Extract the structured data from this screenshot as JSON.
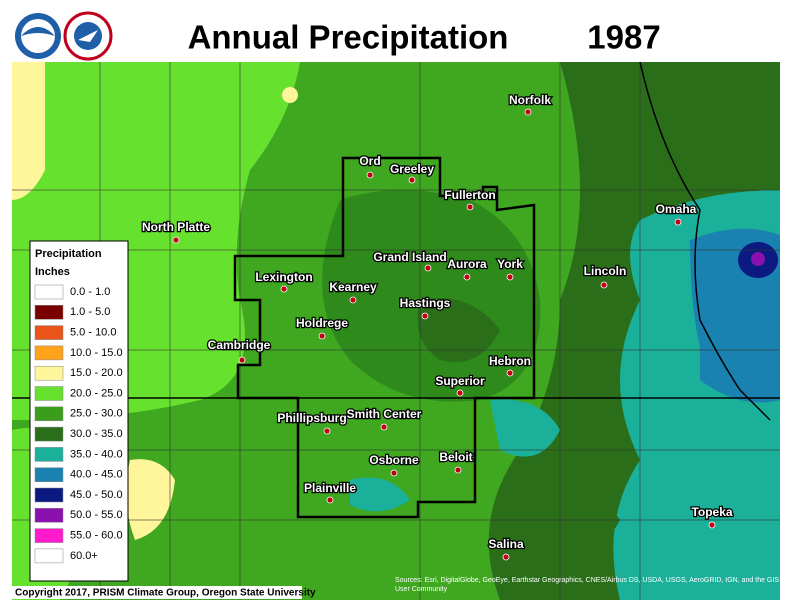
{
  "header": {
    "title": "Annual Precipitation",
    "year": "1987"
  },
  "legend": {
    "title": "Precipitation",
    "units": "Inches",
    "items": [
      {
        "label": "0.0 - 1.0",
        "color": "#ffffff"
      },
      {
        "label": "1.0 - 5.0",
        "color": "#7a0000"
      },
      {
        "label": "5.0 - 10.0",
        "color": "#e8541a"
      },
      {
        "label": "10.0 - 15.0",
        "color": "#ffa31a"
      },
      {
        "label": "15.0 - 20.0",
        "color": "#fff59a"
      },
      {
        "label": "20.0 - 25.0",
        "color": "#66e22e"
      },
      {
        "label": "25.0 - 30.0",
        "color": "#3a9e1c"
      },
      {
        "label": "30.0 - 35.0",
        "color": "#2a6e1a"
      },
      {
        "label": "35.0 - 40.0",
        "color": "#1ab09a"
      },
      {
        "label": "40.0 - 45.0",
        "color": "#1a82b0"
      },
      {
        "label": "45.0 - 50.0",
        "color": "#0a1a80"
      },
      {
        "label": "50.0 - 55.0",
        "color": "#8a10b0"
      },
      {
        "label": "55.0 - 60.0",
        "color": "#ff1acc"
      },
      {
        "label": "60.0+",
        "color": "#ffffff"
      }
    ]
  },
  "cities": [
    "Norfolk",
    "Ord",
    "Greeley",
    "Fullerton",
    "North Platte",
    "Omaha",
    "Grand Island",
    "Aurora",
    "York",
    "Lincoln",
    "Lexington",
    "Kearney",
    "Hastings",
    "Holdrege",
    "Cambridge",
    "Hebron",
    "Superior",
    "Phillipsburg",
    "Smith Center",
    "Beloit",
    "Osborne",
    "Plainville",
    "Topeka",
    "Salina"
  ],
  "footer": {
    "copyright": "Copyright 2017, PRISM Climate Group, Oregon State University",
    "sources": "Sources: Esri, DigitalGlobe, GeoEye, Earthstar Geographics, CNES/Airbus DS, USDA, USGS, AeroGRID, IGN, and the GIS User Community"
  }
}
